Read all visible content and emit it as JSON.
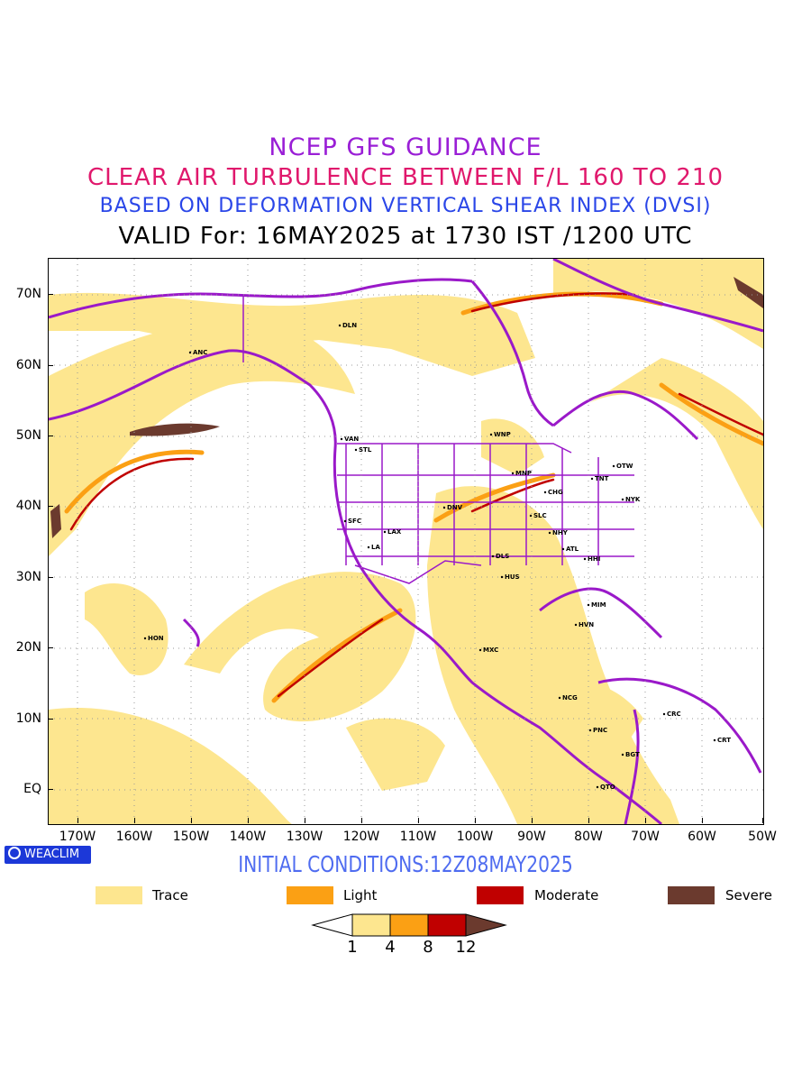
{
  "titles": {
    "line1": "NCEP GFS GUIDANCE",
    "line2": "CLEAR AIR TURBULENCE BETWEEN F/L 160 TO 210",
    "line3": "BASED ON DEFORMATION VERTICAL SHEAR INDEX (DVSI)",
    "line4": "VALID For: 16MAY2025 at 1730 IST /1200 UTC"
  },
  "axes": {
    "lat_labels": [
      "70N",
      "60N",
      "50N",
      "40N",
      "30N",
      "20N",
      "10N",
      "EQ"
    ],
    "lon_labels": [
      "170W",
      "160W",
      "150W",
      "140W",
      "130W",
      "120W",
      "110W",
      "100W",
      "90W",
      "80W",
      "70W",
      "60W",
      "50W"
    ]
  },
  "cities": [
    "ANC",
    "DLN",
    "VAN",
    "STL",
    "WNP",
    "MNP",
    "OTW",
    "TNT",
    "CHG",
    "NYK",
    "DNV",
    "SLC",
    "LAX",
    "SFC",
    "LA",
    "NHY",
    "ATL",
    "DLS",
    "HHI",
    "HUS",
    "MIM",
    "HVN",
    "HON",
    "MXC",
    "NCG",
    "PNC",
    "CRC",
    "BGT",
    "CRT",
    "QTO"
  ],
  "logo": {
    "text": "WEACLIM"
  },
  "initial_conditions": "INITIAL CONDITIONS:12Z08MAY2025",
  "legend": [
    {
      "label": "Trace",
      "color": "#fde68f"
    },
    {
      "label": "Light",
      "color": "#fba014"
    },
    {
      "label": "Moderate",
      "color": "#c00000"
    },
    {
      "label": "Severe",
      "color": "#6b3a2e"
    }
  ],
  "colorbar": {
    "values": [
      "1",
      "4",
      "8",
      "12"
    ]
  },
  "colors": {
    "coast": "#9a19c9",
    "trace": "#fde68f",
    "light": "#fba014",
    "moderate": "#c00000",
    "severe": "#6b3a2e"
  }
}
